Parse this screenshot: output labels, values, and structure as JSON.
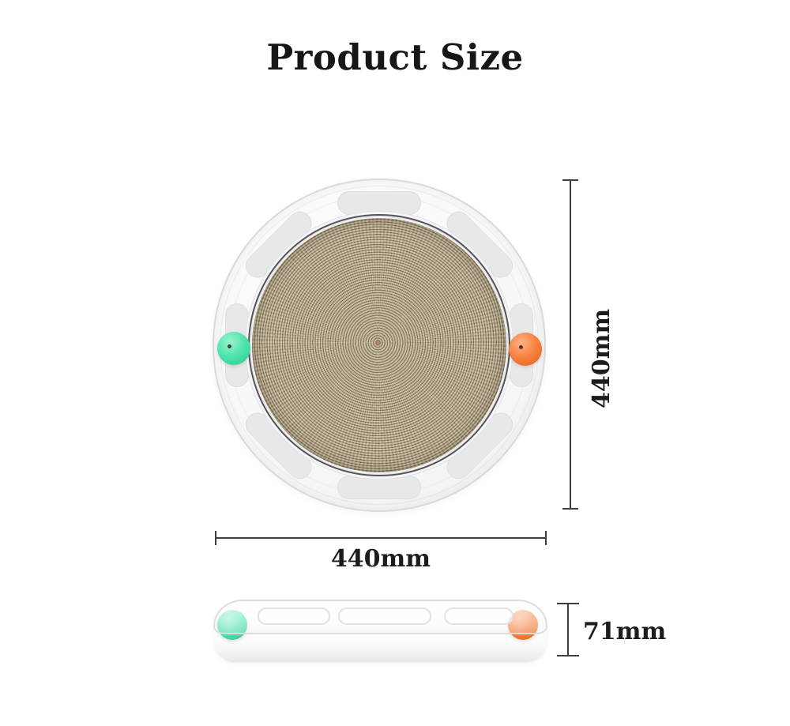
{
  "title": "Product Size",
  "dimensions": {
    "diameter_vertical": "440mm",
    "diameter_horizontal": "440mm",
    "thickness": "71mm"
  },
  "product": {
    "top_view": "round cat scratcher with corrugated cardboard pad and ball track",
    "side_view": "flat disc profile with transparent cover and two balls"
  },
  "colors": {
    "green_ball": "#4fe4ab",
    "orange_ball": "#f8813f",
    "cardboard_light": "#ccbd9d",
    "cardboard_dark": "#7d7058",
    "ring_plastic": "#f8f8fa",
    "dimension_line": "#3f3f3f",
    "title_text": "#161616",
    "background": "#ffffff"
  }
}
